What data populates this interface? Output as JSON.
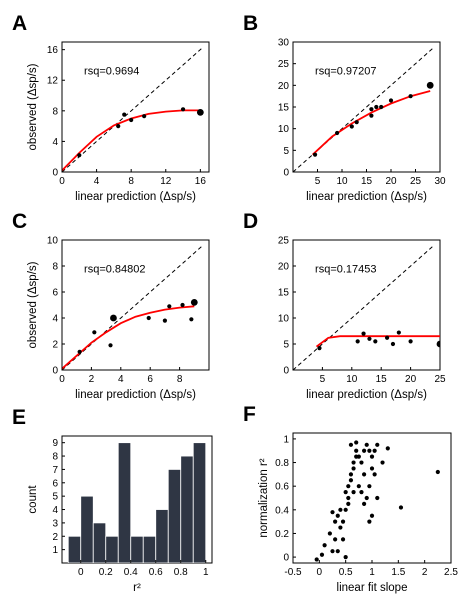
{
  "panel_letters": [
    "A",
    "B",
    "C",
    "D",
    "E",
    "F"
  ],
  "colors": {
    "fit": "#ff0000",
    "points": "#000000",
    "bar": "#2f3644",
    "identity": "#000000"
  },
  "chart_data": [
    {
      "type": "scatter",
      "letter": "A",
      "annotation": "rsq=0.9694",
      "xlabel": "linear prediction (Δsp/s)",
      "ylabel": "observed (Δsp/s)",
      "xlim": [
        0,
        17
      ],
      "ylim": [
        0,
        17
      ],
      "xticks": [
        0,
        4,
        8,
        12,
        16
      ],
      "yticks": [
        0,
        4,
        8,
        12,
        16
      ],
      "identity_line": true,
      "points": [
        [
          2,
          2.2,
          1
        ],
        [
          6.5,
          6,
          1
        ],
        [
          7.2,
          7.5,
          1
        ],
        [
          8,
          6.8,
          1
        ],
        [
          9.5,
          7.3,
          1
        ],
        [
          14,
          8.2,
          1
        ],
        [
          16,
          7.8,
          2
        ]
      ],
      "fit_curve": [
        [
          0,
          0.2
        ],
        [
          2,
          2.5
        ],
        [
          4,
          4.6
        ],
        [
          6,
          6.1
        ],
        [
          8,
          7.0
        ],
        [
          10,
          7.6
        ],
        [
          12,
          7.9
        ],
        [
          14,
          8.05
        ],
        [
          16,
          8.05
        ]
      ]
    },
    {
      "type": "scatter",
      "letter": "B",
      "annotation": "rsq=0.97207",
      "xlabel": "linear prediction (Δsp/s)",
      "ylabel": "",
      "xlim": [
        0,
        30
      ],
      "ylim": [
        0,
        30
      ],
      "xticks": [
        5,
        10,
        15,
        20,
        25,
        30
      ],
      "yticks": [
        0,
        5,
        10,
        15,
        20,
        25,
        30
      ],
      "identity_line": true,
      "points": [
        [
          4.5,
          4,
          1
        ],
        [
          9,
          9,
          1
        ],
        [
          12,
          10.5,
          1
        ],
        [
          13,
          11.5,
          1
        ],
        [
          16,
          13,
          1
        ],
        [
          16,
          14.5,
          1
        ],
        [
          17,
          15,
          1
        ],
        [
          18,
          15,
          1
        ],
        [
          20,
          16.5,
          1
        ],
        [
          24,
          17.5,
          1
        ],
        [
          28,
          20,
          2
        ]
      ],
      "fit_curve": [
        [
          4,
          4
        ],
        [
          8,
          8.2
        ],
        [
          12,
          11.2
        ],
        [
          16,
          13.7
        ],
        [
          20,
          15.8
        ],
        [
          24,
          17.5
        ],
        [
          28,
          18.7
        ]
      ]
    },
    {
      "type": "scatter",
      "letter": "C",
      "annotation": "rsq=0.84802",
      "xlabel": "linear prediction (Δsp/s)",
      "ylabel": "observed (Δsp/s)",
      "xlim": [
        0,
        10
      ],
      "ylim": [
        0,
        10
      ],
      "xticks": [
        0,
        2,
        4,
        6,
        8
      ],
      "yticks": [
        0,
        2,
        4,
        6,
        8,
        10
      ],
      "identity_line": true,
      "points": [
        [
          1.2,
          1.4,
          1
        ],
        [
          2.2,
          2.9,
          1
        ],
        [
          3.3,
          1.9,
          1
        ],
        [
          3.5,
          4.0,
          2
        ],
        [
          5.9,
          4.0,
          1
        ],
        [
          7.0,
          3.8,
          1
        ],
        [
          7.3,
          4.9,
          1
        ],
        [
          8.2,
          5.0,
          1
        ],
        [
          8.8,
          3.9,
          1
        ],
        [
          9.0,
          5.2,
          2
        ]
      ],
      "fit_curve": [
        [
          0,
          0.1
        ],
        [
          1,
          1.1
        ],
        [
          2,
          2.1
        ],
        [
          3,
          2.9
        ],
        [
          4,
          3.6
        ],
        [
          5,
          4.1
        ],
        [
          6,
          4.4
        ],
        [
          7,
          4.65
        ],
        [
          8,
          4.8
        ],
        [
          9,
          4.9
        ]
      ]
    },
    {
      "type": "scatter",
      "letter": "D",
      "annotation": "rsq=0.17453",
      "xlabel": "linear prediction (Δsp/s)",
      "ylabel": "",
      "xlim": [
        0,
        25
      ],
      "ylim": [
        0,
        25
      ],
      "xticks": [
        5,
        10,
        15,
        20,
        25
      ],
      "yticks": [
        0,
        5,
        10,
        15,
        20,
        25
      ],
      "identity_line": true,
      "points": [
        [
          4.5,
          4.2,
          1
        ],
        [
          11,
          5.5,
          1
        ],
        [
          12,
          7,
          1
        ],
        [
          13,
          6,
          1
        ],
        [
          14,
          5.5,
          1
        ],
        [
          16,
          6.2,
          1
        ],
        [
          17,
          5,
          1
        ],
        [
          18,
          7.2,
          1
        ],
        [
          20,
          5.5,
          1
        ],
        [
          25,
          5,
          2
        ]
      ],
      "fit_curve": [
        [
          4,
          4.5
        ],
        [
          6,
          6.2
        ],
        [
          8,
          6.5
        ],
        [
          12,
          6.5
        ],
        [
          16,
          6.5
        ],
        [
          20,
          6.5
        ],
        [
          25,
          6.5
        ]
      ]
    },
    {
      "type": "bar",
      "letter": "E",
      "xlabel": "r²",
      "ylabel": "count",
      "xlim": [
        -0.15,
        1.05
      ],
      "ylim": [
        0,
        9.5
      ],
      "xticks": [
        0,
        0.2,
        0.4,
        0.6,
        0.8,
        1
      ],
      "xtick_labels": [
        "0",
        "0.2",
        "0.4",
        "0.6",
        "0.8",
        "1"
      ],
      "yticks": [
        1,
        2,
        3,
        4,
        5,
        6,
        7,
        8,
        9
      ],
      "bin_width": 0.1,
      "bin_centers": [
        -0.05,
        0.05,
        0.15,
        0.25,
        0.35,
        0.45,
        0.55,
        0.65,
        0.75,
        0.85,
        0.95
      ],
      "values": [
        2,
        5,
        3,
        2,
        9,
        2,
        2,
        4,
        7,
        8,
        9
      ]
    },
    {
      "type": "scatter",
      "letter": "F",
      "xlabel": "linear fit slope",
      "ylabel": "normalization r²",
      "xlim": [
        -0.5,
        2.5
      ],
      "ylim": [
        -0.05,
        1.05
      ],
      "xticks": [
        -0.5,
        0,
        0.5,
        1,
        1.5,
        2,
        2.5
      ],
      "xtick_labels": [
        "-0.5",
        "0",
        "0.5",
        "1",
        "1.5",
        "2",
        "2.5"
      ],
      "yticks": [
        0,
        0.2,
        0.4,
        0.6,
        0.8,
        1
      ],
      "yticklabels": [
        "0",
        "0.2",
        "0.4",
        "0.6",
        "0.8",
        "1"
      ],
      "identity_line": false,
      "points": [
        [
          -0.05,
          -0.02
        ],
        [
          0.05,
          0.02
        ],
        [
          0.1,
          0.1
        ],
        [
          0.2,
          0.2
        ],
        [
          0.25,
          0.05
        ],
        [
          0.3,
          0.3
        ],
        [
          0.3,
          0.15
        ],
        [
          0.35,
          0.35
        ],
        [
          0.4,
          0.4
        ],
        [
          0.45,
          0.3
        ],
        [
          0.4,
          0.25
        ],
        [
          0.5,
          0.0
        ],
        [
          0.5,
          0.55
        ],
        [
          0.55,
          0.45
        ],
        [
          0.55,
          0.6
        ],
        [
          0.6,
          0.65
        ],
        [
          0.6,
          0.7
        ],
        [
          0.65,
          0.75
        ],
        [
          0.65,
          0.8
        ],
        [
          0.7,
          0.85
        ],
        [
          0.7,
          0.9
        ],
        [
          0.75,
          0.85
        ],
        [
          0.8,
          0.8
        ],
        [
          0.85,
          0.9
        ],
        [
          0.9,
          0.95
        ],
        [
          0.95,
          0.9
        ],
        [
          1.0,
          0.85
        ],
        [
          1.0,
          0.75
        ],
        [
          0.6,
          0.95
        ],
        [
          0.7,
          0.97
        ],
        [
          0.75,
          0.6
        ],
        [
          0.8,
          0.55
        ],
        [
          0.85,
          0.45
        ],
        [
          0.9,
          0.5
        ],
        [
          0.95,
          0.6
        ],
        [
          1.05,
          0.7
        ],
        [
          1.1,
          0.5
        ],
        [
          1.0,
          0.35
        ],
        [
          0.95,
          0.3
        ],
        [
          1.1,
          0.95
        ],
        [
          1.2,
          0.8
        ],
        [
          1.3,
          0.92
        ],
        [
          1.05,
          0.9
        ],
        [
          0.85,
          0.7
        ],
        [
          0.65,
          0.55
        ],
        [
          0.55,
          0.5
        ],
        [
          0.5,
          0.4
        ],
        [
          0.45,
          0.15
        ],
        [
          0.35,
          0.05
        ],
        [
          0.25,
          0.38
        ],
        [
          1.55,
          0.42
        ],
        [
          2.25,
          0.72
        ]
      ]
    }
  ]
}
